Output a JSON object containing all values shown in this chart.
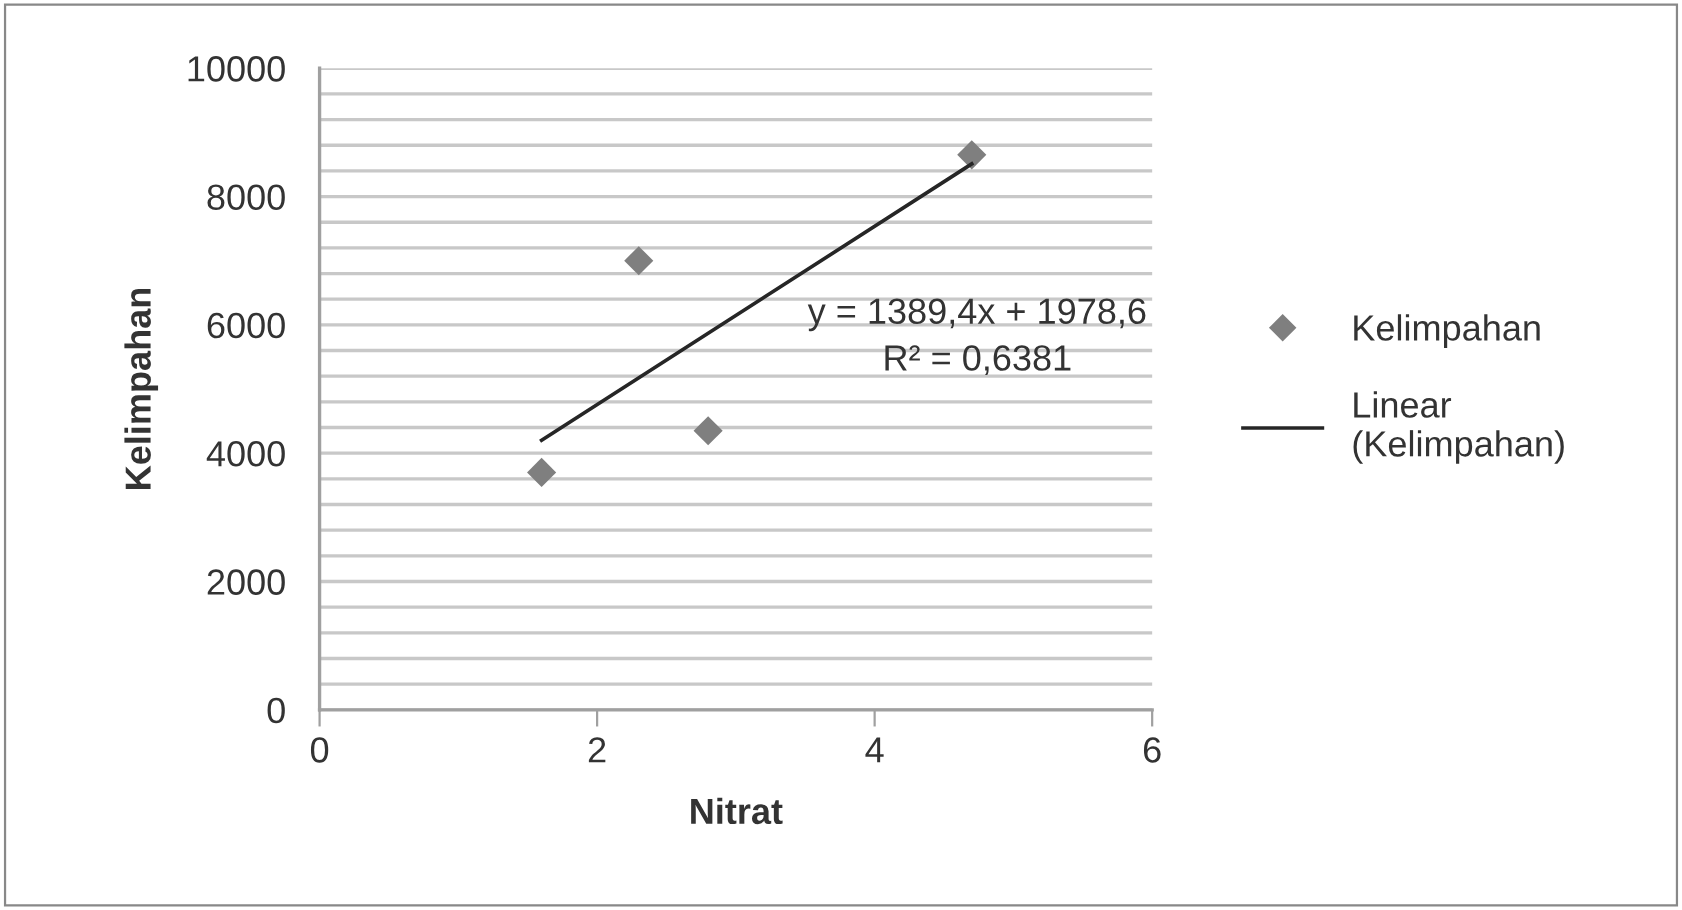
{
  "chart_data": {
    "type": "scatter",
    "xlabel": "Nitrat",
    "ylabel": "Kelimpahan",
    "xlim": [
      0,
      6
    ],
    "xticks": [
      0,
      2,
      4,
      6
    ],
    "ylim": [
      0,
      10000
    ],
    "yticks": [
      0,
      {
        "value": 400,
        "label": null
      },
      {
        "value": 800,
        "label": null
      },
      {
        "value": 1200,
        "label": null
      },
      {
        "value": 1600,
        "label": null
      },
      2000,
      {
        "value": 2400,
        "label": null
      },
      {
        "value": 2800,
        "label": null
      },
      {
        "value": 3200,
        "label": null
      },
      {
        "value": 3600,
        "label": null
      },
      4000,
      {
        "value": 4400,
        "label": null
      },
      {
        "value": 4800,
        "label": null
      },
      {
        "value": 5200,
        "label": null
      },
      {
        "value": 5600,
        "label": null
      },
      6000,
      {
        "value": 6400,
        "label": null
      },
      {
        "value": 6800,
        "label": null
      },
      {
        "value": 7200,
        "label": null
      },
      {
        "value": 7600,
        "label": null
      },
      8000,
      {
        "value": 8400,
        "label": null
      },
      {
        "value": 8800,
        "label": null
      },
      {
        "value": 9200,
        "label": null
      },
      {
        "value": 9600,
        "label": null
      },
      10000
    ],
    "grid": "y",
    "legend": "right",
    "marker": "diamond",
    "series": [
      {
        "name": "Kelimpahan",
        "color": "#7f7f7f",
        "x": [
          1.6,
          2.3,
          2.8,
          4.7
        ],
        "values": [
          3700,
          7000,
          4350,
          8650
        ]
      },
      {
        "name": "Linear\n(Kelimpahan)",
        "type": "line",
        "color": "#262626",
        "marker": "none",
        "x": [
          1.6,
          4.7
        ],
        "values": [
          4200,
          8510
        ]
      }
    ],
    "annotations": [
      "y = 1389,4x + 1978,6\nR² = 0,6381"
    ]
  }
}
